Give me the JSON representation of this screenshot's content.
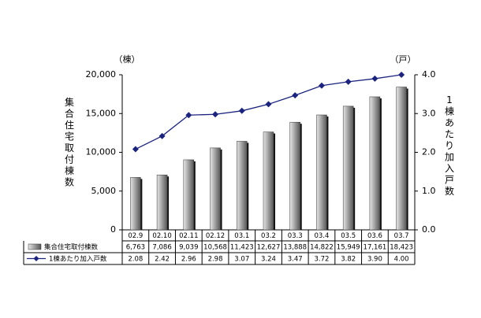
{
  "chart_data": {
    "type": "bar",
    "categories": [
      "02.9",
      "02.10",
      "02.11",
      "02.12",
      "03.1",
      "03.2",
      "03.3",
      "03.4",
      "03.5",
      "03.6",
      "03.7"
    ],
    "series": [
      {
        "name": "集合住宅取付棟数",
        "type": "bar",
        "axis": "left",
        "values": [
          6763,
          7086,
          9039,
          10568,
          11423,
          12627,
          13888,
          14822,
          15949,
          17161,
          18423
        ],
        "display_values": [
          "6,763",
          "7,086",
          "9,039",
          "10,568",
          "11,423",
          "12,627",
          "13,888",
          "14,822",
          "15,949",
          "17,161",
          "18,423"
        ]
      },
      {
        "name": "1棟あたり加入戸数",
        "type": "line",
        "axis": "right",
        "values": [
          2.08,
          2.42,
          2.96,
          2.98,
          3.07,
          3.24,
          3.47,
          3.72,
          3.82,
          3.9,
          4.0
        ],
        "display_values": [
          "2.08",
          "2.42",
          "2.96",
          "2.98",
          "3.07",
          "3.24",
          "3.47",
          "3.72",
          "3.82",
          "3.90",
          "4.00"
        ]
      }
    ],
    "y_left": {
      "unit": "（棟）",
      "title": "集合住宅取付棟数",
      "ylim": [
        0,
        20000
      ],
      "ticks": [
        "0",
        "5,000",
        "10,000",
        "15,000",
        "20,000"
      ]
    },
    "y_right": {
      "unit": "（戸）",
      "title": "1棟あたり加入戸数",
      "ylim": [
        0,
        4
      ],
      "ticks": [
        "0.0",
        "1.0",
        "2.0",
        "3.0",
        "4.0"
      ]
    },
    "grid": false,
    "legend": "data-table",
    "colors": {
      "bar_light": "#e6e6e6",
      "bar_dark": "#555555",
      "bar_shadow": "#111111",
      "line": "#1a237e",
      "marker": "#1a237e"
    }
  }
}
